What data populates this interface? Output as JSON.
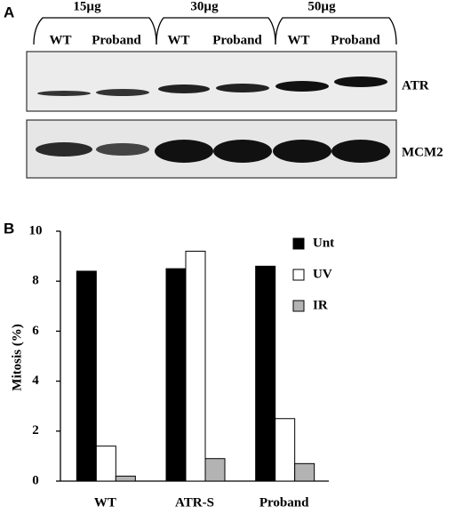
{
  "panel_a": {
    "label": "A",
    "doses": [
      "15µg",
      "30µg",
      "50µg"
    ],
    "lanes": [
      "WT",
      "Proband",
      "WT",
      "Proband",
      "WT",
      "Proband"
    ],
    "proteins": [
      "ATR",
      "MCM2"
    ]
  },
  "panel_b": {
    "label": "B"
  },
  "chart_data": {
    "type": "bar",
    "ylabel": "Mitosis (%)",
    "categories": [
      "WT",
      "ATR-S",
      "Proband"
    ],
    "series": [
      {
        "name": "Unt",
        "color": "#000000",
        "values": [
          8.4,
          8.5,
          8.6
        ]
      },
      {
        "name": "UV",
        "color": "#ffffff",
        "values": [
          1.4,
          9.2,
          2.5
        ]
      },
      {
        "name": "IR",
        "color": "#b3b3b3",
        "values": [
          0.2,
          0.9,
          0.7
        ]
      }
    ],
    "ylim": [
      0,
      10
    ],
    "yticks": [
      0,
      2,
      4,
      6,
      8,
      10
    ],
    "legend": "top-right",
    "grid": false
  }
}
